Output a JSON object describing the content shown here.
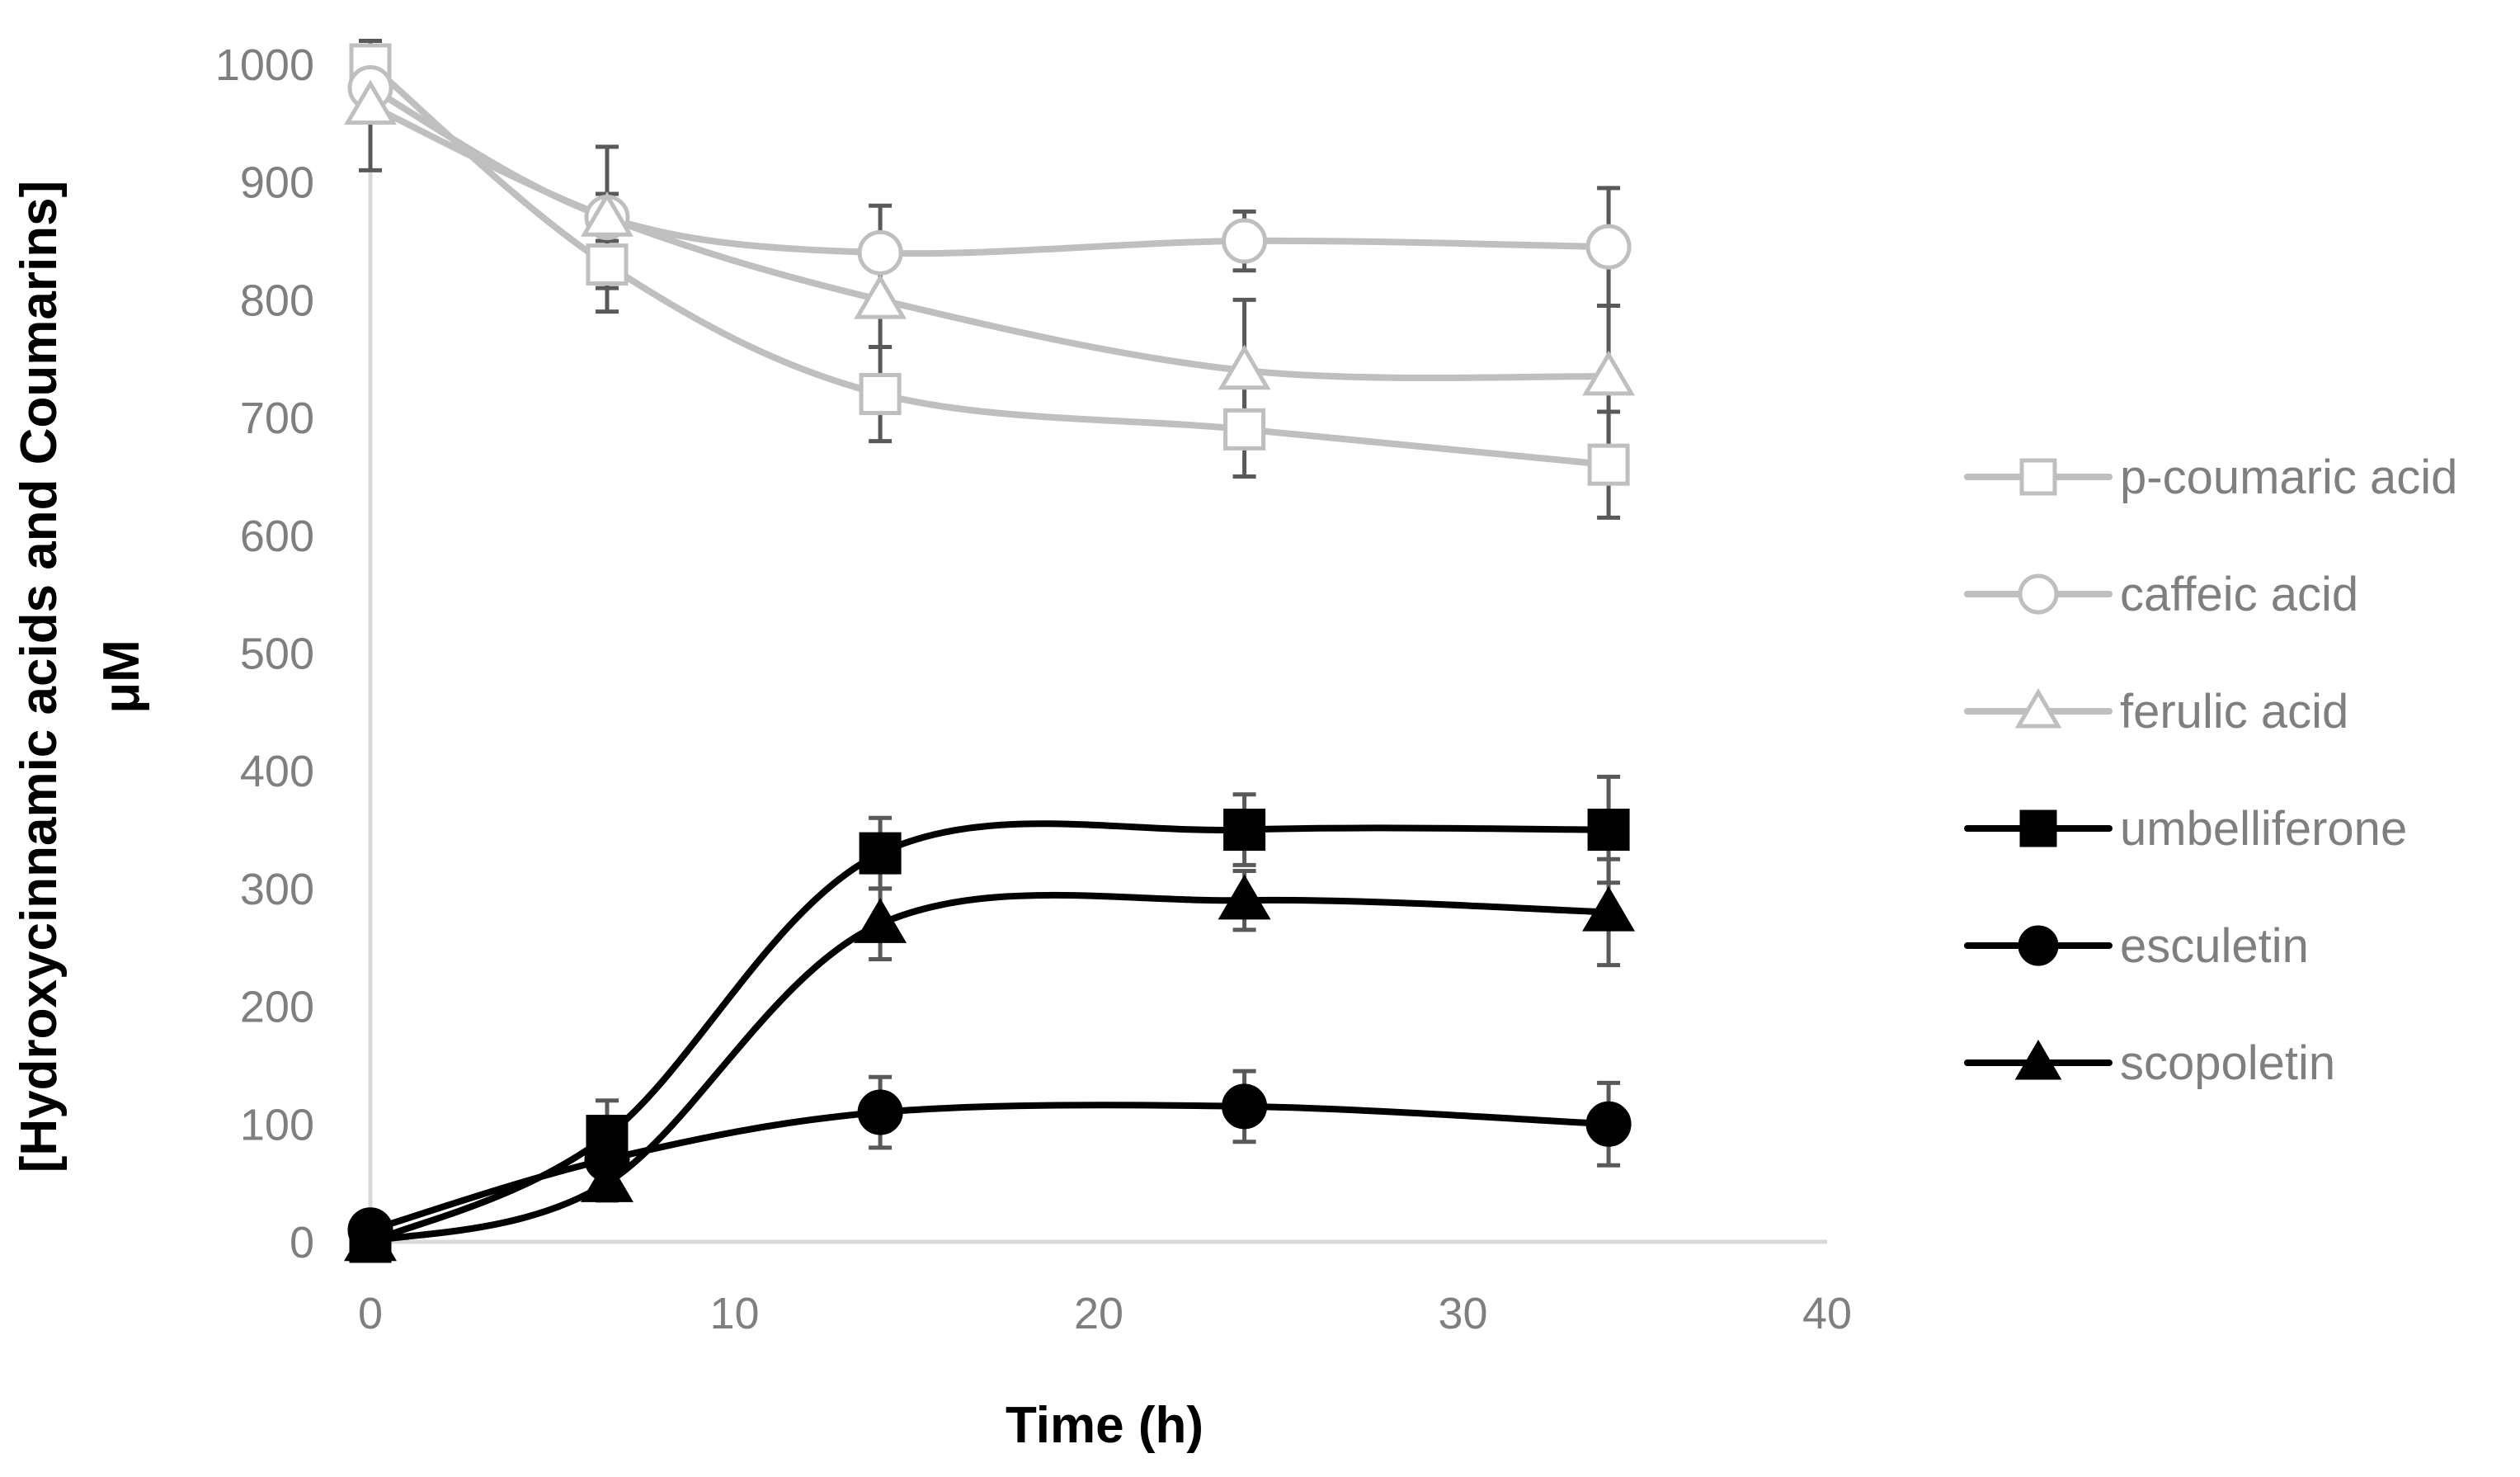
{
  "chart_data": {
    "type": "line",
    "title": "",
    "xlabel": "Time (h)",
    "ylabel_line1": "[Hydroxycinnamic acids and Coumarins]",
    "ylabel_line2": "μM",
    "xlim": [
      0,
      40
    ],
    "ylim": [
      0,
      1000
    ],
    "xticks": [
      0,
      10,
      20,
      30,
      40
    ],
    "yticks": [
      0,
      100,
      200,
      300,
      400,
      500,
      600,
      700,
      800,
      900,
      1000
    ],
    "grid": false,
    "legend_position": "right",
    "x": [
      0,
      6.5,
      14,
      24,
      34
    ],
    "series": [
      {
        "name": "p-coumaric acid",
        "color": "#bfbfbf",
        "marker": "square",
        "filled": false,
        "values": [
          1000,
          830,
          720,
          690,
          660
        ],
        "errors": [
          0,
          40,
          40,
          40,
          45
        ]
      },
      {
        "name": "caffeic acid",
        "color": "#bfbfbf",
        "marker": "circle",
        "filled": false,
        "values": [
          980,
          870,
          840,
          850,
          845
        ],
        "errors": [
          0,
          20,
          40,
          25,
          50
        ]
      },
      {
        "name": "ferulic acid",
        "color": "#bfbfbf",
        "marker": "triangle",
        "filled": false,
        "values": [
          965,
          870,
          800,
          740,
          735
        ],
        "errors": [
          55,
          60,
          40,
          60,
          60
        ]
      },
      {
        "name": "umbelliferone",
        "color": "#000000",
        "marker": "square",
        "filled": true,
        "values": [
          0,
          90,
          330,
          350,
          350
        ],
        "errors": [
          0,
          30,
          30,
          30,
          45
        ]
      },
      {
        "name": "esculetin",
        "color": "#000000",
        "marker": "circle",
        "filled": true,
        "values": [
          10,
          70,
          110,
          115,
          100
        ],
        "errors": [
          0,
          10,
          30,
          30,
          35
        ]
      },
      {
        "name": "scopoletin",
        "color": "#000000",
        "marker": "triangle",
        "filled": true,
        "values": [
          0,
          50,
          270,
          290,
          280
        ],
        "errors": [
          0,
          15,
          30,
          25,
          45
        ]
      }
    ]
  }
}
